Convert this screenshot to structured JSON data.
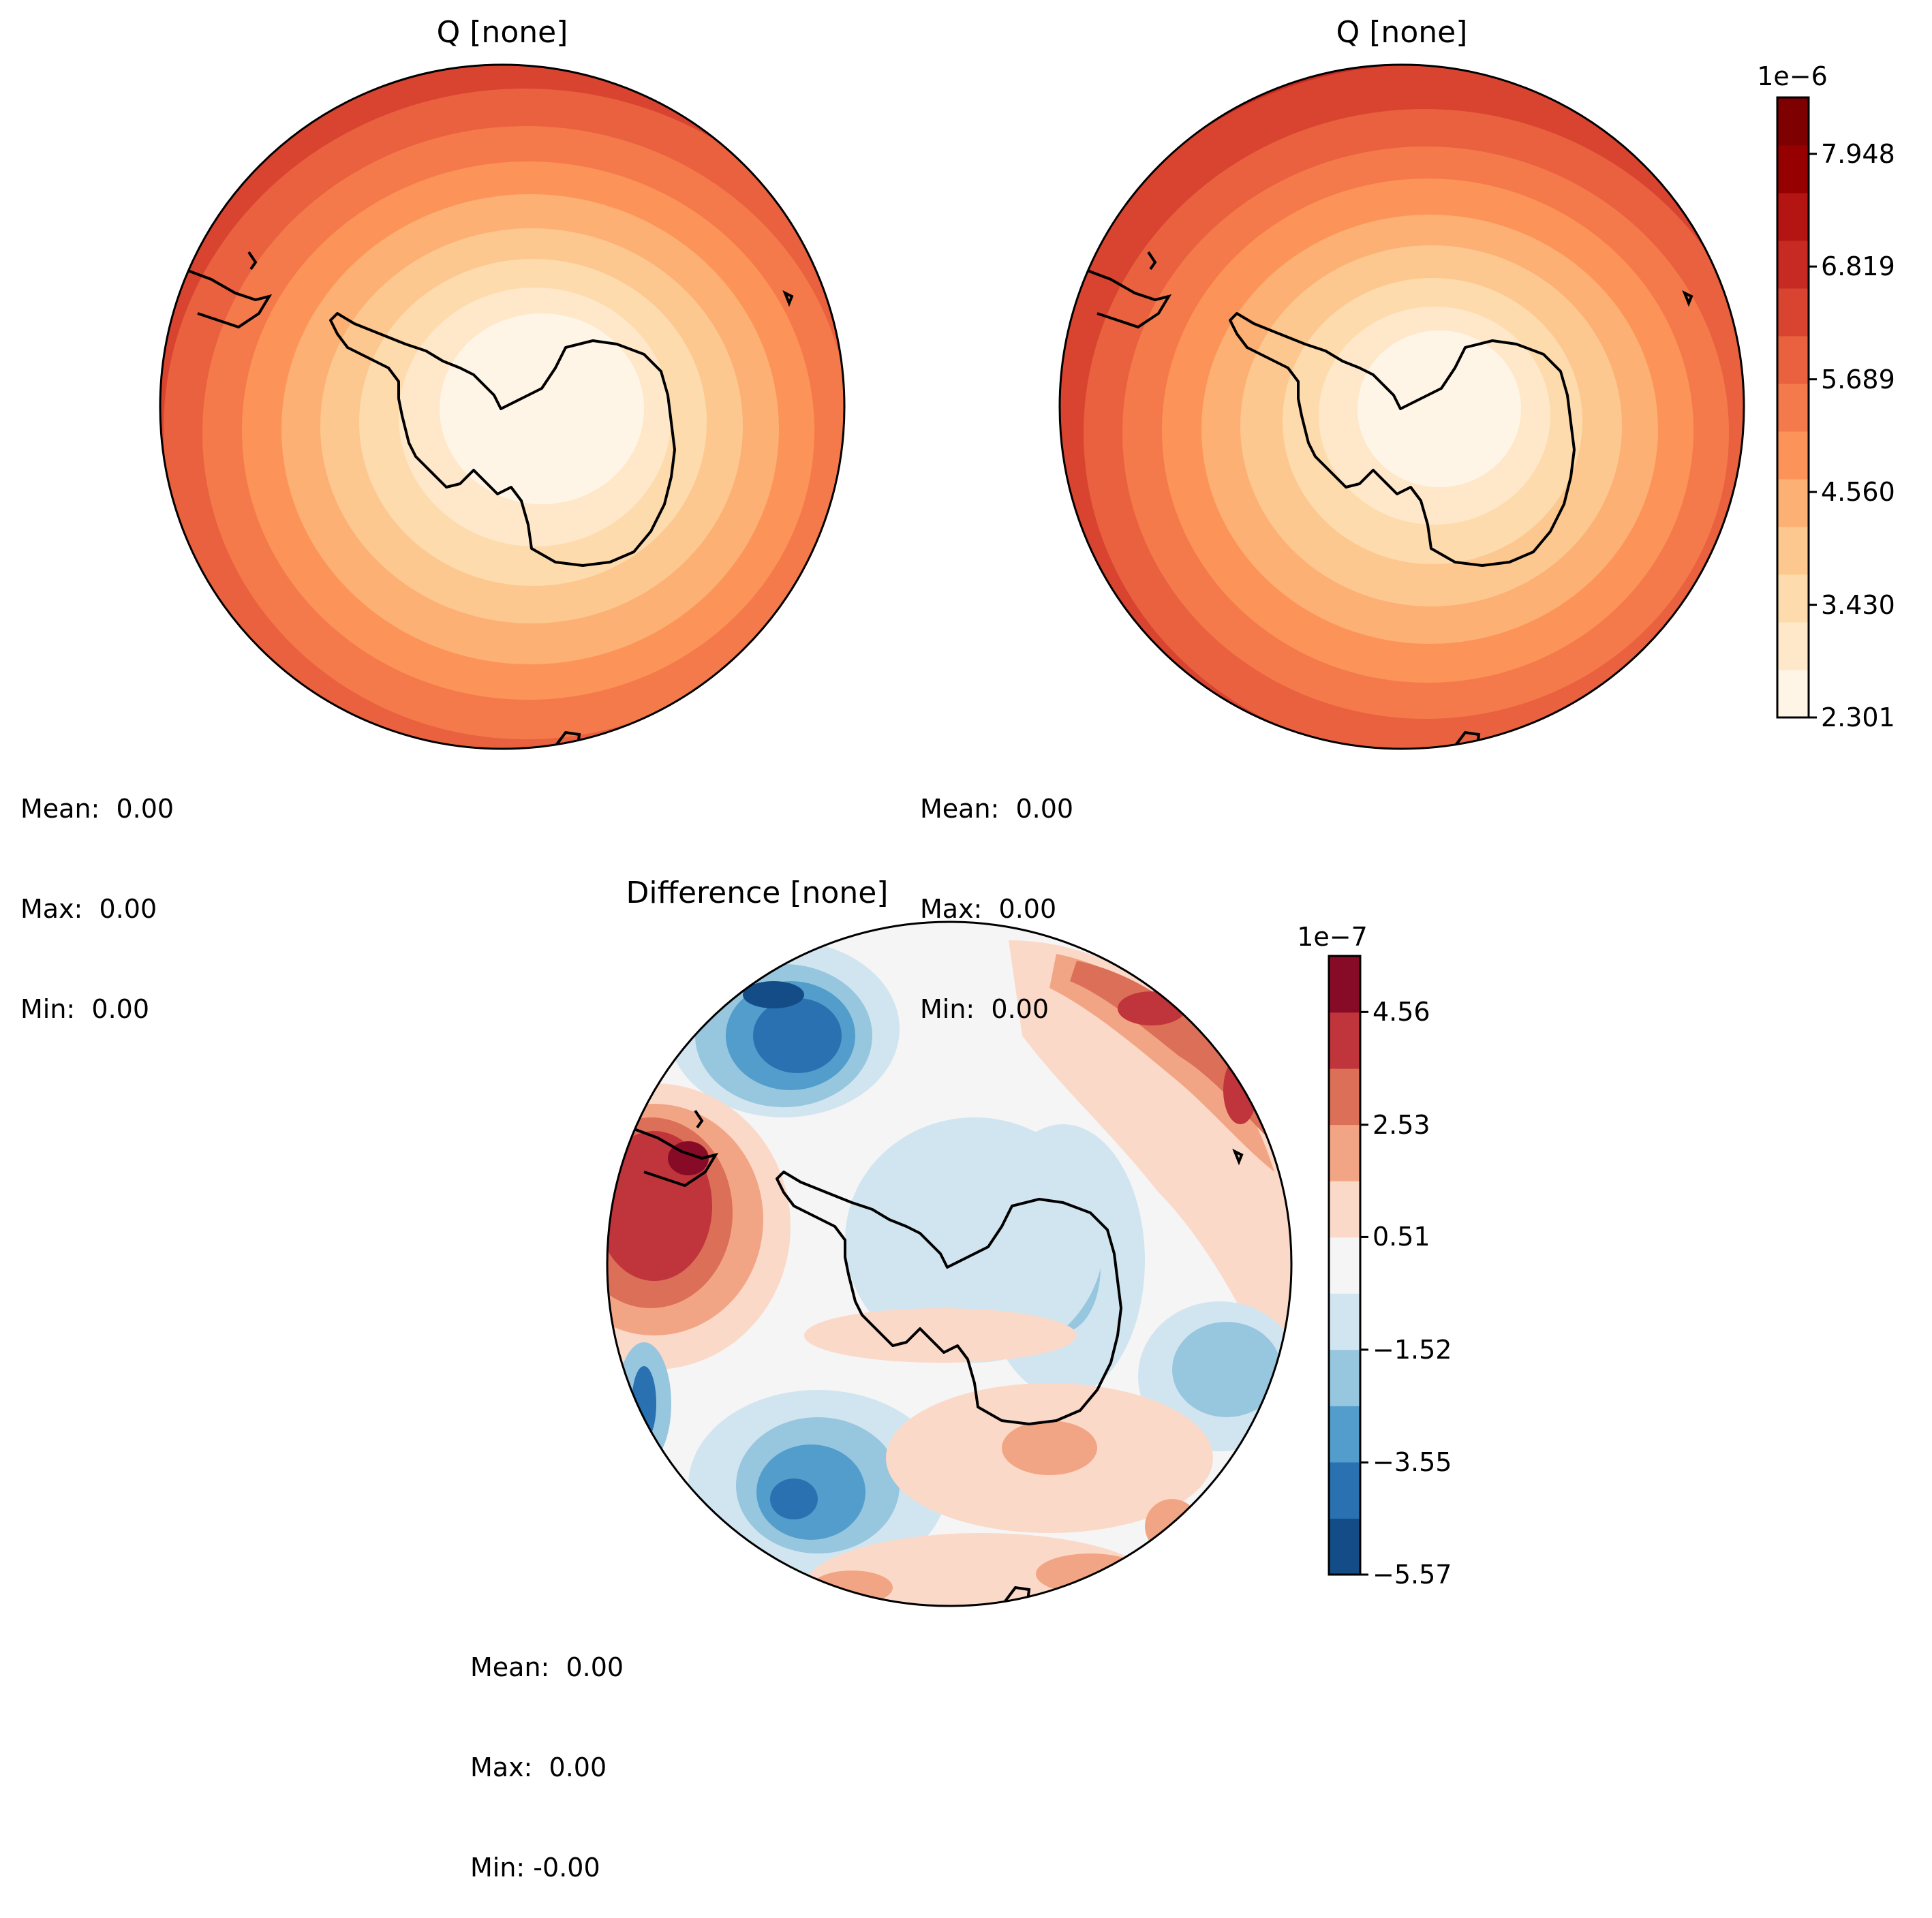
{
  "panels": [
    {
      "title": "Q [none]",
      "stats": [
        "Mean:  0.00",
        "Max:  0.00",
        "Min:  0.00"
      ]
    },
    {
      "title": "Q [none]",
      "stats": [
        "Mean:  0.00",
        "Max:  0.00",
        "Min:  0.00"
      ]
    },
    {
      "title": "Difference [none]",
      "stats": [
        "Mean:  0.00",
        "Max:  0.00",
        "Min: -0.00"
      ]
    }
  ],
  "colorbars": {
    "q": {
      "exponent": "1e−6",
      "ticks": [
        "7.948",
        "6.819",
        "5.689",
        "4.560",
        "3.430",
        "2.301"
      ],
      "tick_values": [
        7.948,
        6.819,
        5.689,
        4.56,
        3.43,
        2.301
      ],
      "range": [
        2.301,
        8.513
      ],
      "colors": [
        "#fff5e6",
        "#fee8c9",
        "#fddbad",
        "#fdc88f",
        "#fcb073",
        "#fc9459",
        "#f57a4b",
        "#e9613f",
        "#d94431",
        "#c72a22",
        "#b41512",
        "#960000",
        "#7f0000"
      ]
    },
    "diff": {
      "exponent": "1e−7",
      "ticks": [
        "4.56",
        "2.53",
        "0.51",
        "−1.52",
        "−3.55",
        "−5.57"
      ],
      "tick_values": [
        4.56,
        2.53,
        0.51,
        -1.52,
        -3.55,
        -5.57
      ],
      "range": [
        -5.57,
        5.57
      ],
      "colors": [
        "#134c86",
        "#2a71b1",
        "#529dcb",
        "#97c6df",
        "#d1e5f0",
        "#f5f5f5",
        "#fbd9c8",
        "#f2a584",
        "#dc6f58",
        "#c0343b",
        "#870b26"
      ]
    }
  },
  "chart_data": [
    {
      "type": "heatmap",
      "title": "Q [none]",
      "projection": "south polar stereographic",
      "colorbar_ticks": [
        2.301,
        3.43,
        4.56,
        5.689,
        6.819,
        7.948
      ],
      "colorbar_scale": "1e-6",
      "description_values": {
        "mean": "0.00",
        "max": "0.00",
        "min": "0.00"
      }
    },
    {
      "type": "heatmap",
      "title": "Q [none]",
      "projection": "south polar stereographic",
      "colorbar_ticks": [
        2.301,
        3.43,
        4.56,
        5.689,
        6.819,
        7.948
      ],
      "colorbar_scale": "1e-6",
      "description_values": {
        "mean": "0.00",
        "max": "0.00",
        "min": "0.00"
      }
    },
    {
      "type": "heatmap",
      "title": "Difference [none]",
      "projection": "south polar stereographic",
      "colorbar_ticks": [
        -5.57,
        -3.55,
        -1.52,
        0.51,
        2.53,
        4.56
      ],
      "colorbar_scale": "1e-7",
      "description_values": {
        "mean": "0.00",
        "max": "0.00",
        "min": "-0.00"
      }
    }
  ]
}
